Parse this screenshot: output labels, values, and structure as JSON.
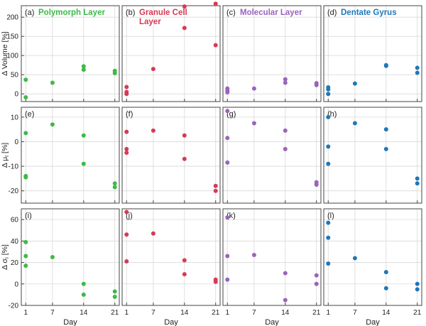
{
  "chart_data": {
    "type": "scatter",
    "x_ticks": [
      1,
      7,
      14,
      21
    ],
    "xlabel": "Day",
    "grid": true,
    "columns": [
      {
        "title": [
          "Polymorph Layer"
        ],
        "color": "#3dba47"
      },
      {
        "title": [
          "Granule Cell",
          "Layer"
        ],
        "color": "#d63a55"
      },
      {
        "title": [
          "Molecular Layer"
        ],
        "color": "#9b63bd"
      },
      {
        "title": [
          "Dentate Gyrus"
        ],
        "color": "#1f77b8"
      }
    ],
    "rows": [
      {
        "ylabel": "Δ Volume [%]",
        "ylim": [
          -20,
          230
        ],
        "yticks": [
          0,
          50,
          100,
          150,
          200
        ],
        "panels": [
          {
            "label": "(a)",
            "points": [
              [
                1,
                37
              ],
              [
                1,
                -9
              ],
              [
                7,
                29
              ],
              [
                14,
                72
              ],
              [
                14,
                63
              ],
              [
                21,
                60
              ],
              [
                21,
                54
              ]
            ]
          },
          {
            "label": "(b)",
            "points": [
              [
                1,
                18
              ],
              [
                1,
                5
              ],
              [
                1,
                0
              ],
              [
                7,
                65
              ],
              [
                14,
                228
              ],
              [
                14,
                172
              ],
              [
                21,
                235
              ],
              [
                21,
                127
              ]
            ]
          },
          {
            "label": "(c)",
            "points": [
              [
                1,
                14
              ],
              [
                1,
                8
              ],
              [
                1,
                4
              ],
              [
                7,
                14
              ],
              [
                14,
                38
              ],
              [
                14,
                29
              ],
              [
                21,
                28
              ],
              [
                21,
                23
              ]
            ]
          },
          {
            "label": "(d)",
            "points": [
              [
                1,
                17
              ],
              [
                1,
                12
              ],
              [
                1,
                0
              ],
              [
                7,
                27
              ],
              [
                14,
                75
              ],
              [
                14,
                73
              ],
              [
                21,
                68
              ],
              [
                21,
                55
              ]
            ]
          }
        ]
      },
      {
        "ylabel": "Δ μ",
        "ylabel_sub": "I",
        "ylabel_suffix": " [%]",
        "ylim": [
          -25,
          14
        ],
        "yticks": [
          -20,
          -10,
          0,
          10
        ],
        "panels": [
          {
            "label": "(e)",
            "points": [
              [
                1,
                3.5
              ],
              [
                1,
                -14.5
              ],
              [
                1,
                -14
              ],
              [
                7,
                7
              ],
              [
                14,
                2.5
              ],
              [
                14,
                -9
              ],
              [
                21,
                -17
              ],
              [
                21,
                -18.5
              ]
            ]
          },
          {
            "label": "(f)",
            "points": [
              [
                1,
                4
              ],
              [
                1,
                -3
              ],
              [
                1,
                -4.5
              ],
              [
                7,
                4.5
              ],
              [
                14,
                2.5
              ],
              [
                14,
                -7
              ],
              [
                21,
                -18
              ],
              [
                21,
                -20
              ]
            ]
          },
          {
            "label": "(g)",
            "points": [
              [
                1,
                12.5
              ],
              [
                1,
                1.5
              ],
              [
                1,
                -8.5
              ],
              [
                7,
                7.5
              ],
              [
                14,
                4.5
              ],
              [
                14,
                -3
              ],
              [
                21,
                -16.5
              ],
              [
                21,
                -17.5
              ]
            ]
          },
          {
            "label": "(h)",
            "points": [
              [
                1,
                10
              ],
              [
                1,
                -2
              ],
              [
                1,
                -9
              ],
              [
                7,
                7.5
              ],
              [
                14,
                5
              ],
              [
                14,
                -3
              ],
              [
                21,
                -15
              ],
              [
                21,
                -17
              ]
            ]
          }
        ]
      },
      {
        "ylabel": "Δ σ",
        "ylabel_sub": "I",
        "ylabel_suffix": " [%]",
        "ylim": [
          -20,
          70
        ],
        "yticks": [
          -20,
          0,
          20,
          40,
          60
        ],
        "panels": [
          {
            "label": "(i)",
            "points": [
              [
                1,
                39
              ],
              [
                1,
                26
              ],
              [
                1,
                17
              ],
              [
                7,
                25
              ],
              [
                14,
                0
              ],
              [
                14,
                -10
              ],
              [
                21,
                -7
              ],
              [
                21,
                -12
              ]
            ]
          },
          {
            "label": "(j)",
            "points": [
              [
                1,
                67
              ],
              [
                1,
                46
              ],
              [
                1,
                21
              ],
              [
                7,
                47
              ],
              [
                14,
                22
              ],
              [
                14,
                9
              ],
              [
                21,
                4
              ],
              [
                21,
                2
              ]
            ]
          },
          {
            "label": "(k)",
            "points": [
              [
                1,
                62
              ],
              [
                1,
                26
              ],
              [
                1,
                4
              ],
              [
                7,
                27
              ],
              [
                14,
                10
              ],
              [
                14,
                -15
              ],
              [
                21,
                8
              ],
              [
                21,
                0
              ]
            ]
          },
          {
            "label": "(l)",
            "points": [
              [
                1,
                57
              ],
              [
                1,
                43
              ],
              [
                1,
                19
              ],
              [
                7,
                24
              ],
              [
                14,
                11
              ],
              [
                14,
                -4
              ],
              [
                21,
                0
              ],
              [
                21,
                -5
              ]
            ]
          }
        ]
      }
    ]
  }
}
